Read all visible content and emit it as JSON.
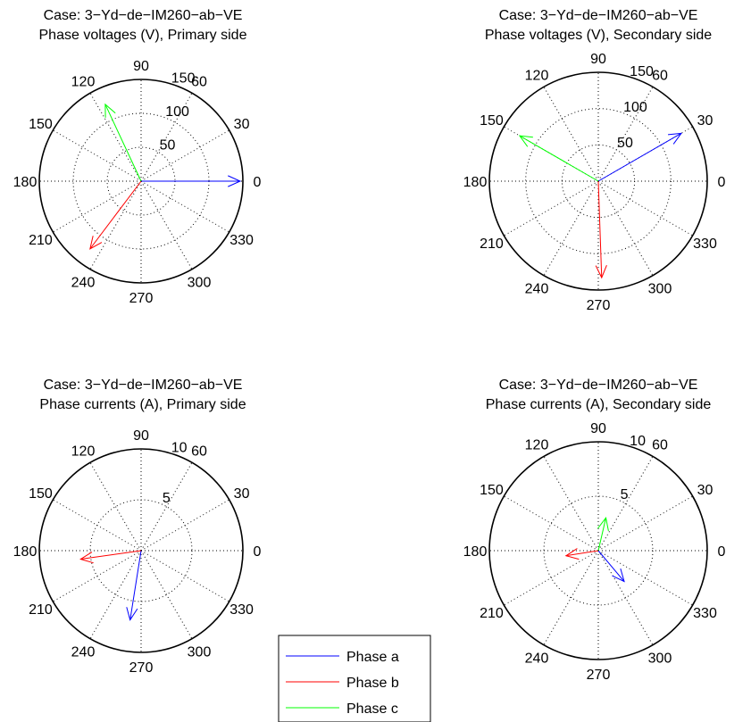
{
  "legend": {
    "entries": [
      {
        "label": "Phase a",
        "color": "#0000ff"
      },
      {
        "label": "Phase b",
        "color": "#ff0000"
      },
      {
        "label": "Phase c",
        "color": "#00ff00"
      }
    ]
  },
  "chart_data": [
    {
      "type": "polar",
      "title": "Case: 3−Yd−de−IM260−ab−VE",
      "subtitle": "Phase voltages (V), Primary side",
      "rmax": 150,
      "radial_ticks": [
        50,
        100,
        150
      ],
      "radial_tick_labels": [
        "50",
        "100",
        "150"
      ],
      "angle_ticks": [
        0,
        30,
        60,
        90,
        120,
        150,
        180,
        210,
        240,
        270,
        300,
        330
      ],
      "angle_tick_labels": [
        "0",
        "30",
        "60",
        "90",
        "120",
        "150",
        "180",
        "210",
        "240",
        "270",
        "300",
        "330"
      ],
      "series": [
        {
          "name": "Phase a",
          "magnitude": 146,
          "angle_deg": 0
        },
        {
          "name": "Phase b",
          "magnitude": 125,
          "angle_deg": 233
        },
        {
          "name": "Phase c",
          "magnitude": 125,
          "angle_deg": 115
        }
      ]
    },
    {
      "type": "polar",
      "title": "Case: 3−Yd−de−IM260−ab−VE",
      "subtitle": "Phase voltages (V), Secondary side",
      "rmax": 150,
      "radial_ticks": [
        50,
        100,
        150
      ],
      "radial_tick_labels": [
        "50",
        "100",
        "150"
      ],
      "angle_ticks": [
        0,
        30,
        60,
        90,
        120,
        150,
        180,
        210,
        240,
        270,
        300,
        330
      ],
      "angle_tick_labels": [
        "0",
        "30",
        "60",
        "90",
        "120",
        "150",
        "180",
        "210",
        "240",
        "270",
        "300",
        "330"
      ],
      "series": [
        {
          "name": "Phase a",
          "magnitude": 132,
          "angle_deg": 30
        },
        {
          "name": "Phase b",
          "magnitude": 133,
          "angle_deg": 272
        },
        {
          "name": "Phase c",
          "magnitude": 125,
          "angle_deg": 150
        }
      ]
    },
    {
      "type": "polar",
      "title": "Case: 3−Yd−de−IM260−ab−VE",
      "subtitle": "Phase currents (A), Primary side",
      "rmax": 10,
      "radial_ticks": [
        5,
        10
      ],
      "radial_tick_labels": [
        "5",
        "10"
      ],
      "angle_ticks": [
        0,
        30,
        60,
        90,
        120,
        150,
        180,
        210,
        240,
        270,
        300,
        330
      ],
      "angle_tick_labels": [
        "0",
        "30",
        "60",
        "90",
        "120",
        "150",
        "180",
        "210",
        "240",
        "270",
        "300",
        "330"
      ],
      "series": [
        {
          "name": "Phase a",
          "magnitude": 6.9,
          "angle_deg": 261
        },
        {
          "name": "Phase b",
          "magnitude": 6.0,
          "angle_deg": 188
        },
        {
          "name": "Phase c",
          "magnitude": 0,
          "angle_deg": 0
        }
      ]
    },
    {
      "type": "polar",
      "title": "Case: 3−Yd−de−IM260−ab−VE",
      "subtitle": "Phase currents (A), Secondary side",
      "rmax": 10,
      "radial_ticks": [
        5,
        10
      ],
      "radial_tick_labels": [
        "5",
        "10"
      ],
      "angle_ticks": [
        0,
        30,
        60,
        90,
        120,
        150,
        180,
        210,
        240,
        270,
        300,
        330
      ],
      "angle_tick_labels": [
        "0",
        "30",
        "60",
        "90",
        "120",
        "150",
        "180",
        "210",
        "240",
        "270",
        "300",
        "330"
      ],
      "series": [
        {
          "name": "Phase a",
          "magnitude": 3.7,
          "angle_deg": 310
        },
        {
          "name": "Phase b",
          "magnitude": 3.0,
          "angle_deg": 189
        },
        {
          "name": "Phase c",
          "magnitude": 3.1,
          "angle_deg": 77
        }
      ]
    }
  ]
}
